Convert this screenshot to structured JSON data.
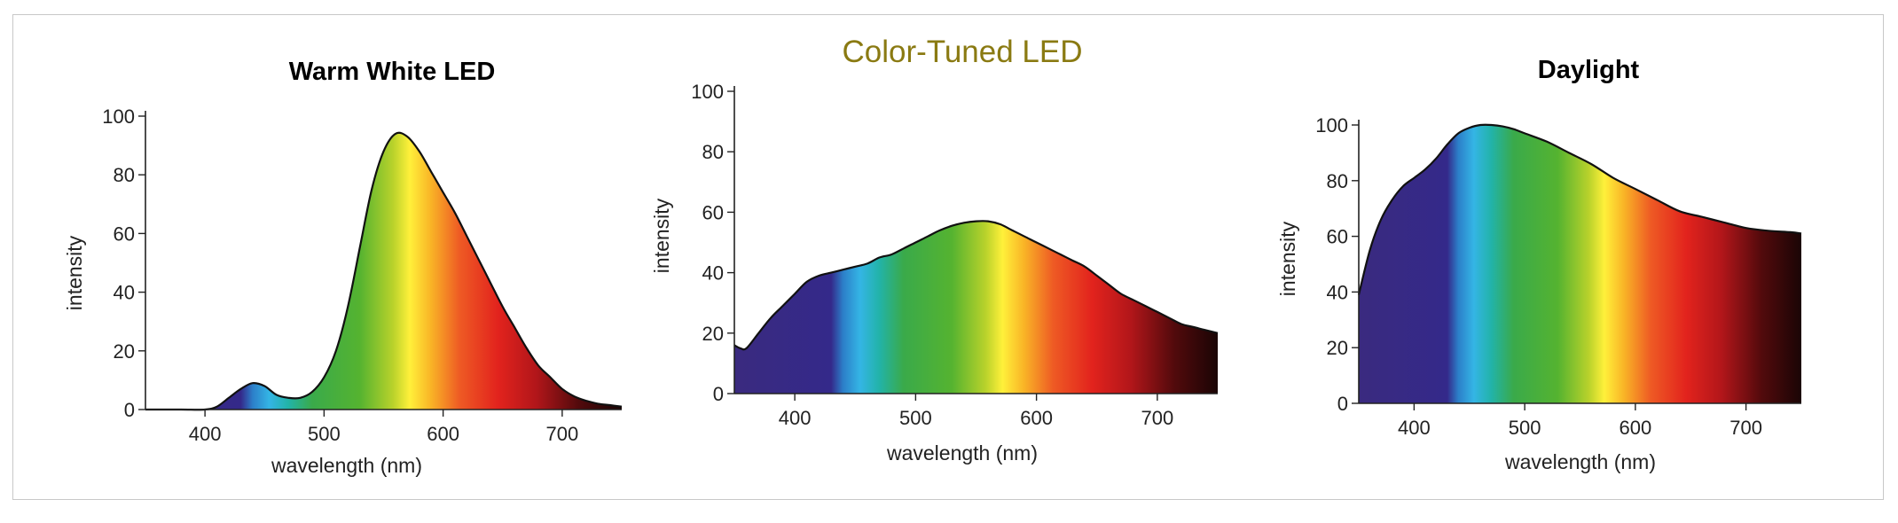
{
  "chart_data": [
    {
      "type": "area",
      "title": "Warm White LED",
      "xlabel": "wavelength (nm)",
      "ylabel": "intensity",
      "xlim": [
        350,
        750
      ],
      "ylim": [
        0,
        100
      ],
      "xticks": [
        400,
        500,
        600,
        700
      ],
      "yticks": [
        0,
        20,
        40,
        60,
        80,
        100
      ],
      "title_color": "#000000",
      "series": [
        {
          "x": [
            350,
            380,
            400,
            410,
            420,
            430,
            440,
            450,
            460,
            470,
            480,
            490,
            500,
            510,
            520,
            530,
            540,
            550,
            560,
            570,
            580,
            590,
            600,
            610,
            620,
            630,
            640,
            650,
            660,
            670,
            680,
            690,
            700,
            710,
            720,
            730,
            740,
            750
          ],
          "values": [
            0,
            0,
            0,
            1,
            4,
            7,
            9,
            8,
            5,
            4,
            4,
            6,
            11,
            20,
            35,
            55,
            75,
            88,
            94,
            93,
            88,
            81,
            74,
            67,
            59,
            51,
            43,
            35,
            28,
            21,
            15,
            11,
            7,
            4.5,
            3,
            2,
            1.5,
            1
          ]
        }
      ]
    },
    {
      "type": "area",
      "title": "Color-Tuned LED",
      "xlabel": "wavelength (nm)",
      "ylabel": "intensity",
      "xlim": [
        350,
        750
      ],
      "ylim": [
        0,
        100
      ],
      "xticks": [
        400,
        500,
        600,
        700
      ],
      "yticks": [
        0,
        20,
        40,
        60,
        80,
        100
      ],
      "title_color": "#8a7a12",
      "series": [
        {
          "x": [
            350,
            355,
            360,
            370,
            380,
            390,
            400,
            410,
            420,
            430,
            440,
            450,
            460,
            470,
            480,
            490,
            500,
            510,
            520,
            530,
            540,
            550,
            560,
            570,
            580,
            590,
            600,
            610,
            620,
            630,
            640,
            650,
            660,
            670,
            680,
            690,
            700,
            710,
            720,
            730,
            740,
            750
          ],
          "values": [
            16,
            15,
            15,
            20,
            25,
            29,
            33,
            37,
            39,
            40,
            41,
            42,
            43,
            45,
            46,
            48,
            50,
            52,
            54,
            55.5,
            56.5,
            57,
            57,
            56,
            54,
            52,
            50,
            48,
            46,
            44,
            42,
            39,
            36,
            33,
            31,
            29,
            27,
            25,
            23,
            22,
            21,
            20
          ]
        }
      ]
    },
    {
      "type": "area",
      "title": "Daylight",
      "xlabel": "wavelength (nm)",
      "ylabel": "intensity",
      "xlim": [
        350,
        750
      ],
      "ylim": [
        0,
        100
      ],
      "xticks": [
        400,
        500,
        600,
        700
      ],
      "yticks": [
        0,
        20,
        40,
        60,
        80,
        100
      ],
      "title_color": "#000000",
      "series": [
        {
          "x": [
            350,
            360,
            370,
            380,
            390,
            400,
            410,
            420,
            430,
            440,
            450,
            460,
            470,
            480,
            490,
            500,
            520,
            540,
            560,
            580,
            600,
            620,
            640,
            660,
            680,
            700,
            720,
            740,
            750
          ],
          "values": [
            39,
            55,
            66,
            73,
            78,
            81,
            84,
            88,
            93,
            97,
            99,
            100,
            100,
            99.5,
            98.5,
            97,
            94,
            90,
            86,
            81,
            77,
            73,
            69,
            67,
            65,
            63,
            62,
            61.5,
            61
          ]
        }
      ]
    }
  ]
}
